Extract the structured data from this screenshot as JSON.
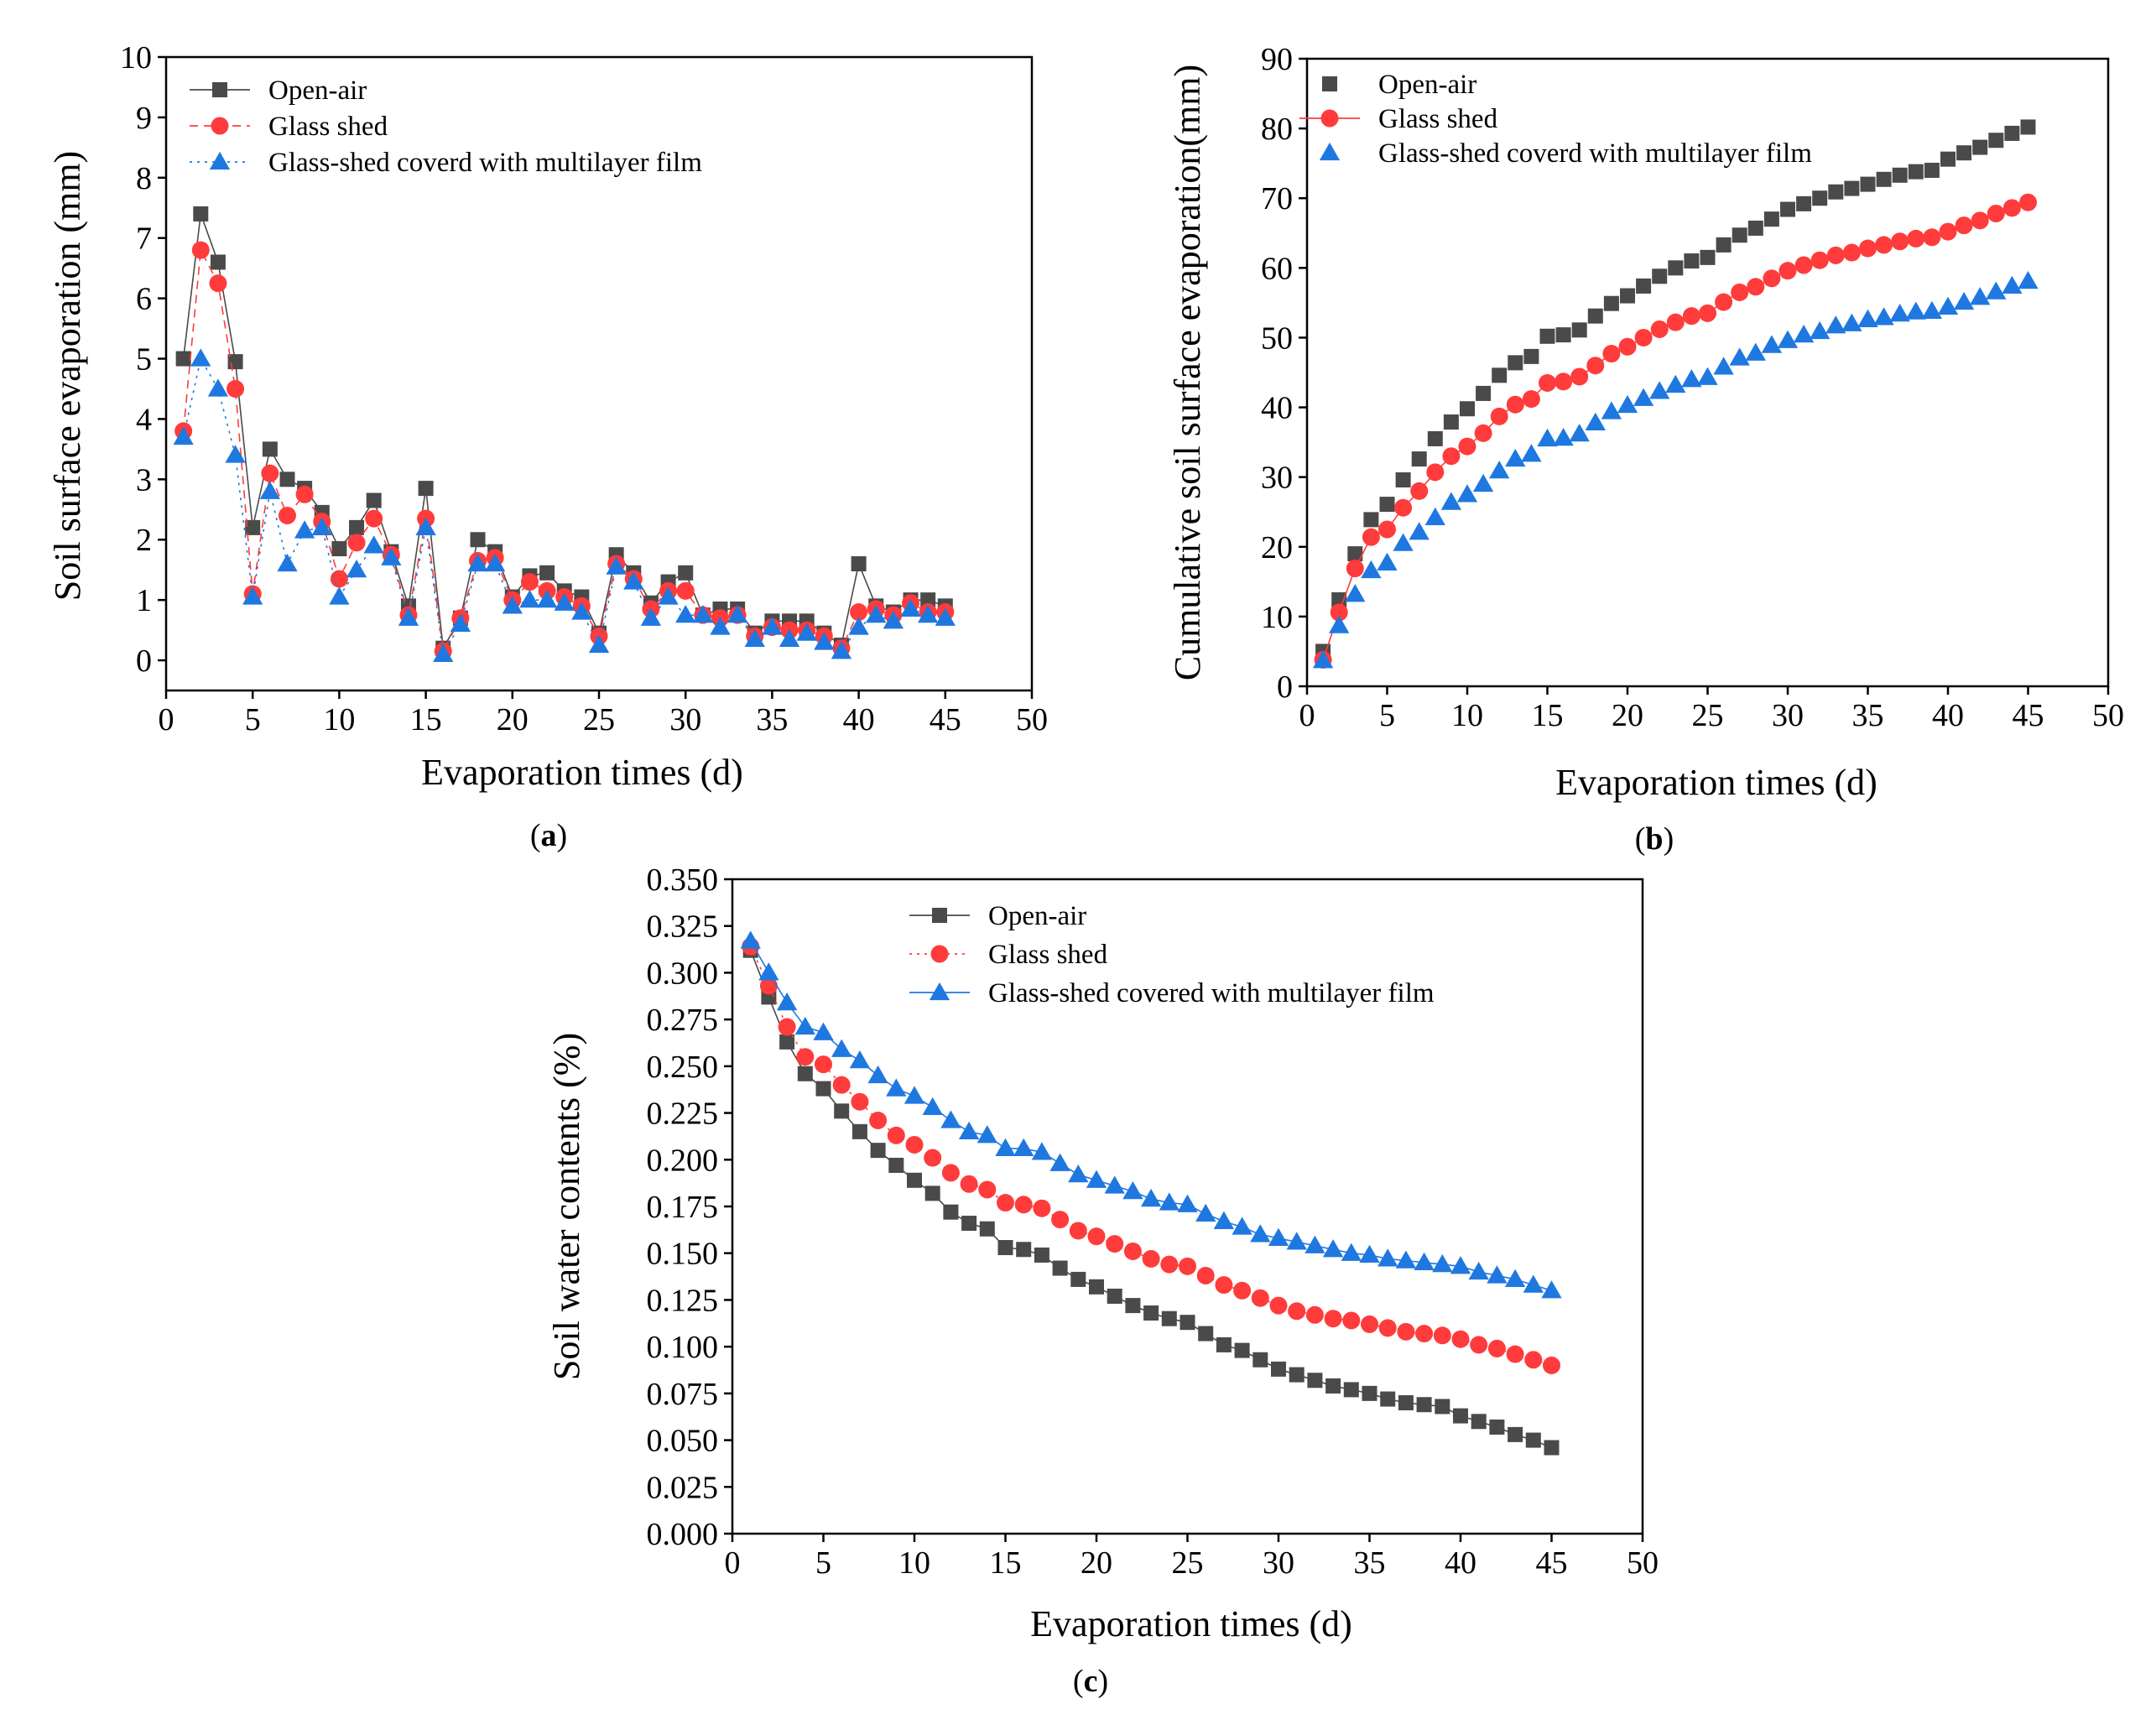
{
  "figure": {
    "panels": [
      "(a)",
      "(b)",
      "(c)"
    ]
  },
  "chart_data": [
    {
      "id": "a",
      "type": "line",
      "panel_label": "a",
      "title": "",
      "xlabel": "Evaporation times (d)",
      "ylabel": "Soil surface evaporation (mm)",
      "xlim": [
        0,
        50
      ],
      "ylim": [
        -0.5,
        10
      ],
      "xticks": [
        0,
        5,
        10,
        15,
        20,
        25,
        30,
        35,
        40,
        45,
        50
      ],
      "yticks": [
        0,
        1,
        2,
        3,
        4,
        5,
        6,
        7,
        8,
        9,
        10
      ],
      "ytick_decimals": 0,
      "legend_position": "top-left",
      "x": [
        1,
        2,
        3,
        4,
        5,
        6,
        7,
        8,
        9,
        10,
        11,
        12,
        13,
        14,
        15,
        16,
        17,
        18,
        19,
        20,
        21,
        22,
        23,
        24,
        25,
        26,
        27,
        28,
        29,
        30,
        31,
        32,
        33,
        34,
        35,
        36,
        37,
        38,
        39,
        40,
        41,
        42,
        43,
        44,
        45
      ],
      "series": [
        {
          "name": "Open-air",
          "color": "#4a4a4a",
          "marker": "square",
          "line": "solid",
          "values": [
            5.0,
            7.4,
            6.6,
            4.95,
            2.2,
            3.5,
            3.0,
            2.85,
            2.45,
            1.85,
            2.2,
            2.65,
            1.8,
            0.9,
            2.85,
            0.2,
            0.7,
            2.0,
            1.8,
            1.05,
            1.4,
            1.45,
            1.15,
            1.05,
            0.45,
            1.75,
            1.45,
            0.95,
            1.3,
            1.45,
            0.75,
            0.85,
            0.85,
            0.45,
            0.65,
            0.65,
            0.65,
            0.45,
            0.25,
            1.6,
            0.9,
            0.8,
            1.0,
            1.0,
            0.9
          ]
        },
        {
          "name": "Glass shed",
          "color": "#ff3b3b",
          "marker": "circle",
          "line": "dashed",
          "values": [
            3.8,
            6.8,
            6.25,
            4.5,
            1.1,
            3.1,
            2.4,
            2.75,
            2.3,
            1.35,
            1.95,
            2.35,
            1.75,
            0.75,
            2.35,
            0.15,
            0.7,
            1.65,
            1.7,
            1.0,
            1.3,
            1.15,
            1.05,
            0.9,
            0.4,
            1.6,
            1.35,
            0.85,
            1.15,
            1.15,
            0.75,
            0.7,
            0.75,
            0.4,
            0.55,
            0.5,
            0.5,
            0.4,
            0.2,
            0.8,
            0.85,
            0.75,
            0.95,
            0.8,
            0.8
          ]
        },
        {
          "name": "Glass-shed coverd with  multilayer film",
          "color": "#1f78e0",
          "marker": "triangle",
          "line": "dotted",
          "values": [
            3.7,
            5.0,
            4.5,
            3.4,
            1.05,
            2.8,
            1.6,
            2.15,
            2.2,
            1.05,
            1.5,
            1.9,
            1.7,
            0.7,
            2.2,
            0.1,
            0.6,
            1.6,
            1.6,
            0.9,
            1.0,
            1.0,
            0.95,
            0.8,
            0.25,
            1.55,
            1.3,
            0.7,
            1.05,
            0.75,
            0.75,
            0.55,
            0.75,
            0.35,
            0.55,
            0.35,
            0.45,
            0.3,
            0.15,
            0.55,
            0.75,
            0.65,
            0.85,
            0.75,
            0.7
          ]
        }
      ]
    },
    {
      "id": "b",
      "type": "scatter",
      "panel_label": "b",
      "title": "",
      "xlabel": "Evaporation times (d)",
      "ylabel": "Cumulative soil surface evaporation(mm)",
      "xlim": [
        0,
        50
      ],
      "ylim": [
        0,
        90
      ],
      "xticks": [
        0,
        5,
        10,
        15,
        20,
        25,
        30,
        35,
        40,
        45,
        50
      ],
      "yticks": [
        0,
        10,
        20,
        30,
        40,
        50,
        60,
        70,
        80,
        90
      ],
      "ytick_decimals": 0,
      "legend_position": "top-left",
      "x": [
        1,
        2,
        3,
        4,
        5,
        6,
        7,
        8,
        9,
        10,
        11,
        12,
        13,
        14,
        15,
        16,
        17,
        18,
        19,
        20,
        21,
        22,
        23,
        24,
        25,
        26,
        27,
        28,
        29,
        30,
        31,
        32,
        33,
        34,
        35,
        36,
        37,
        38,
        39,
        40,
        41,
        42,
        43,
        44,
        45
      ],
      "series": [
        {
          "name": "Open-air",
          "color": "#4a4a4a",
          "marker": "square",
          "line": "none",
          "values": [
            5.0,
            12.4,
            19.0,
            23.9,
            26.1,
            29.6,
            32.6,
            35.5,
            37.9,
            39.8,
            42.0,
            44.6,
            46.4,
            47.3,
            50.2,
            50.4,
            51.1,
            53.1,
            54.9,
            56.0,
            57.4,
            58.8,
            60.0,
            61.0,
            61.5,
            63.3,
            64.7,
            65.7,
            67.0,
            68.4,
            69.2,
            70.0,
            70.9,
            71.4,
            72.0,
            72.7,
            73.3,
            73.8,
            74.0,
            75.6,
            76.5,
            77.3,
            78.3,
            79.3,
            80.2
          ]
        },
        {
          "name": "Glass shed",
          "color": "#ff3b3b",
          "marker": "circle",
          "line": "solid",
          "values": [
            3.8,
            10.6,
            16.9,
            21.4,
            22.5,
            25.6,
            28.0,
            30.7,
            33.0,
            34.4,
            36.3,
            38.7,
            40.4,
            41.2,
            43.5,
            43.7,
            44.4,
            46.0,
            47.7,
            48.7,
            50.0,
            51.2,
            52.2,
            53.1,
            53.5,
            55.1,
            56.5,
            57.3,
            58.5,
            59.6,
            60.4,
            61.1,
            61.8,
            62.2,
            62.8,
            63.3,
            63.8,
            64.2,
            64.4,
            65.2,
            66.1,
            66.8,
            67.8,
            68.6,
            69.4
          ]
        },
        {
          "name": "Glass-shed coverd with  multilayer film",
          "color": "#1f78e0",
          "marker": "triangle",
          "line": "none",
          "values": [
            3.7,
            8.7,
            13.2,
            16.6,
            17.7,
            20.5,
            22.1,
            24.2,
            26.4,
            27.5,
            29.0,
            30.9,
            32.6,
            33.3,
            35.5,
            35.6,
            36.2,
            37.8,
            39.4,
            40.3,
            41.3,
            42.3,
            43.2,
            44.0,
            44.3,
            45.8,
            47.1,
            47.8,
            48.9,
            49.6,
            50.4,
            50.9,
            51.7,
            52.0,
            52.6,
            52.9,
            53.4,
            53.7,
            53.8,
            54.4,
            55.1,
            55.8,
            56.6,
            57.4,
            58.1
          ]
        }
      ]
    },
    {
      "id": "c",
      "type": "line",
      "panel_label": "c",
      "title": "",
      "xlabel": "Evaporation times (d)",
      "ylabel": "Soil water contents  (%)",
      "xlim": [
        0,
        50
      ],
      "ylim": [
        0,
        0.35
      ],
      "xticks": [
        0,
        5,
        10,
        15,
        20,
        25,
        30,
        35,
        40,
        45,
        50
      ],
      "yticks": [
        0,
        0.025,
        0.05,
        0.075,
        0.1,
        0.125,
        0.15,
        0.175,
        0.2,
        0.225,
        0.25,
        0.275,
        0.3,
        0.325,
        0.35
      ],
      "ytick_decimals": 3,
      "legend_position": "top-center",
      "x": [
        1,
        2,
        3,
        4,
        5,
        6,
        7,
        8,
        9,
        10,
        11,
        12,
        13,
        14,
        15,
        16,
        17,
        18,
        19,
        20,
        21,
        22,
        23,
        24,
        25,
        26,
        27,
        28,
        29,
        30,
        31,
        32,
        33,
        34,
        35,
        36,
        37,
        38,
        39,
        40,
        41,
        42,
        43,
        44,
        45
      ],
      "series": [
        {
          "name": "Open-air",
          "color": "#4a4a4a",
          "marker": "square",
          "line": "solid",
          "values": [
            0.312,
            0.287,
            0.263,
            0.246,
            0.238,
            0.226,
            0.215,
            0.205,
            0.197,
            0.189,
            0.182,
            0.172,
            0.166,
            0.163,
            0.153,
            0.152,
            0.149,
            0.142,
            0.136,
            0.132,
            0.127,
            0.122,
            0.118,
            0.115,
            0.113,
            0.107,
            0.101,
            0.098,
            0.093,
            0.088,
            0.085,
            0.082,
            0.079,
            0.077,
            0.075,
            0.072,
            0.07,
            0.069,
            0.068,
            0.063,
            0.06,
            0.057,
            0.053,
            0.05,
            0.046
          ]
        },
        {
          "name": "Glass shed",
          "color": "#ff3b3b",
          "marker": "circle",
          "line": "dotted",
          "values": [
            0.314,
            0.293,
            0.271,
            0.255,
            0.251,
            0.24,
            0.231,
            0.221,
            0.213,
            0.208,
            0.201,
            0.193,
            0.187,
            0.184,
            0.177,
            0.176,
            0.174,
            0.168,
            0.162,
            0.159,
            0.155,
            0.151,
            0.147,
            0.144,
            0.143,
            0.138,
            0.133,
            0.13,
            0.126,
            0.122,
            0.119,
            0.117,
            0.115,
            0.114,
            0.112,
            0.11,
            0.108,
            0.107,
            0.106,
            0.104,
            0.101,
            0.099,
            0.096,
            0.093,
            0.09
          ]
        },
        {
          "name": "Glass-shed covered with multilayer film",
          "color": "#1f78e0",
          "marker": "triangle",
          "line": "solid",
          "values": [
            0.317,
            0.3,
            0.284,
            0.271,
            0.268,
            0.259,
            0.253,
            0.245,
            0.238,
            0.234,
            0.228,
            0.221,
            0.215,
            0.213,
            0.206,
            0.206,
            0.204,
            0.198,
            0.192,
            0.189,
            0.186,
            0.183,
            0.179,
            0.177,
            0.176,
            0.171,
            0.167,
            0.164,
            0.16,
            0.158,
            0.156,
            0.154,
            0.152,
            0.15,
            0.149,
            0.147,
            0.146,
            0.145,
            0.144,
            0.143,
            0.14,
            0.138,
            0.136,
            0.133,
            0.13
          ]
        }
      ]
    }
  ]
}
